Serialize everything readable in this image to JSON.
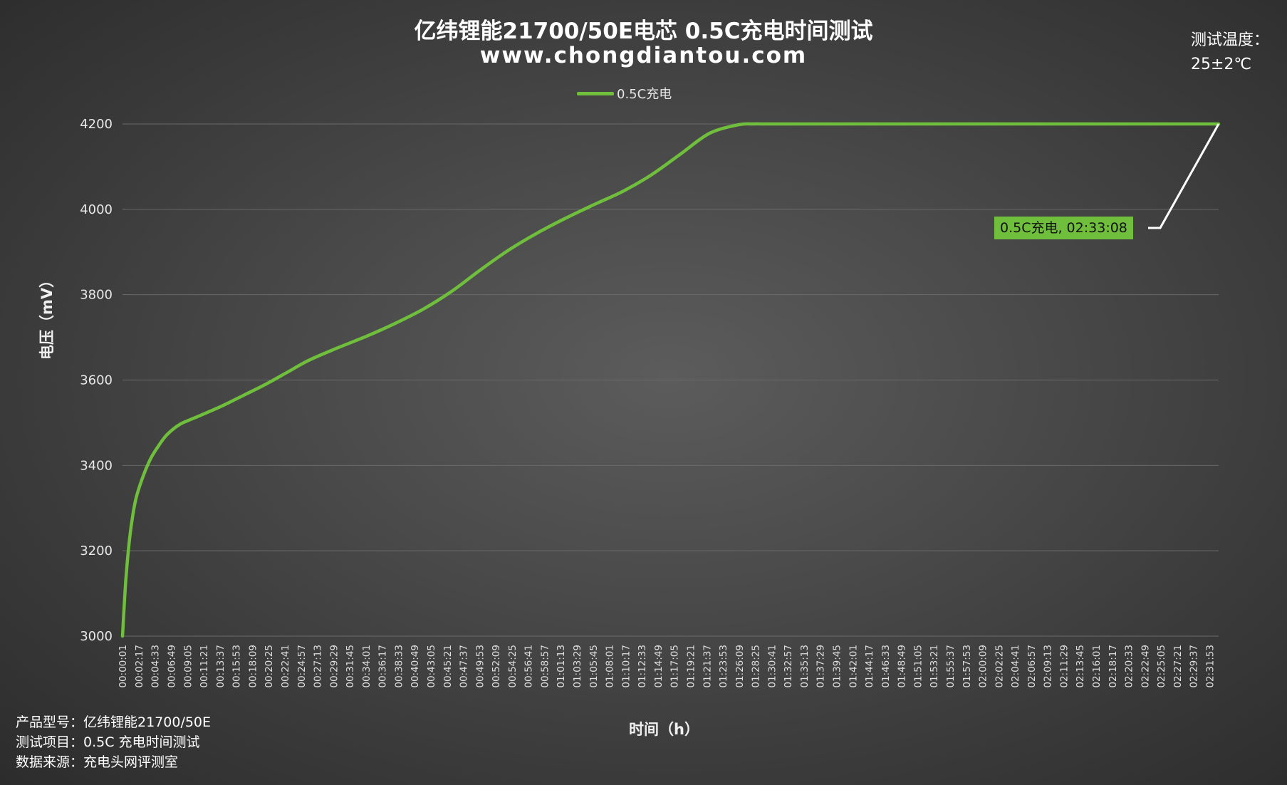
{
  "title_line1": "亿纬锂能21700/50E电芯 0.5C充电时间测试",
  "title_line2": "www.chongdiantou.com",
  "temperature_label": "测试温度：",
  "temperature_value": "25±2℃",
  "info": {
    "model": "产品型号：亿纬锂能21700/50E",
    "project": "测试项目：0.5C 充电时间测试",
    "source": "数据来源：充电头网评测室"
  },
  "colors": {
    "series": "#6fbf3c",
    "gridline": "#6a6a6a",
    "leader": "#ffffff"
  },
  "chart_data": {
    "type": "line",
    "title": "亿纬锂能21700/50E电芯 0.5C充电时间测试",
    "xlabel": "时间（h）",
    "ylabel": "电压（mV）",
    "ylim": [
      3000,
      4200
    ],
    "yticks": [
      3000,
      3200,
      3400,
      3600,
      3800,
      4000,
      4200
    ],
    "grid": "horizontal",
    "legend": "top-center",
    "x_ticks": [
      "00:00:01",
      "00:02:17",
      "00:04:33",
      "00:06:49",
      "00:09:05",
      "00:11:21",
      "00:13:37",
      "00:15:53",
      "00:18:09",
      "00:20:25",
      "00:22:41",
      "00:24:57",
      "00:27:13",
      "00:29:29",
      "00:31:45",
      "00:34:01",
      "00:36:17",
      "00:38:33",
      "00:40:49",
      "00:43:05",
      "00:45:21",
      "00:47:37",
      "00:49:53",
      "00:52:09",
      "00:54:25",
      "00:56:41",
      "00:58:57",
      "01:01:13",
      "01:03:29",
      "01:05:45",
      "01:08:01",
      "01:10:17",
      "01:12:33",
      "01:14:49",
      "01:17:05",
      "01:19:21",
      "01:21:37",
      "01:23:53",
      "01:26:09",
      "01:28:25",
      "01:30:41",
      "01:32:57",
      "01:35:13",
      "01:37:29",
      "01:39:45",
      "01:42:01",
      "01:44:17",
      "01:46:33",
      "01:48:49",
      "01:51:05",
      "01:53:21",
      "01:55:37",
      "01:57:53",
      "02:00:09",
      "02:02:25",
      "02:04:41",
      "02:06:57",
      "02:09:13",
      "02:11:29",
      "02:13:45",
      "02:16:01",
      "02:18:17",
      "02:20:33",
      "02:22:49",
      "02:25:05",
      "02:27:21",
      "02:29:37",
      "02:31:53"
    ],
    "series": [
      {
        "name": "0.5C充电",
        "x_min": [
          0,
          0.2,
          0.5,
          1,
          1.5,
          2,
          3,
          4,
          5,
          6,
          7,
          8,
          9,
          11,
          14,
          17,
          20,
          23,
          26,
          30,
          34,
          38,
          42,
          46,
          50,
          54,
          58,
          62,
          66,
          70,
          74,
          78,
          82,
          86,
          88,
          90,
          92,
          94,
          96,
          100,
          110,
          120,
          130,
          140,
          150,
          153.13
        ],
        "voltage_mv": [
          3000,
          3060,
          3140,
          3230,
          3290,
          3330,
          3380,
          3418,
          3445,
          3468,
          3484,
          3496,
          3504,
          3518,
          3540,
          3565,
          3590,
          3618,
          3646,
          3675,
          3702,
          3732,
          3766,
          3808,
          3858,
          3905,
          3945,
          3980,
          4012,
          4043,
          4082,
          4130,
          4178,
          4198,
          4200,
          4200,
          4200,
          4200,
          4200,
          4200,
          4200,
          4200,
          4200,
          4200,
          4200,
          4200
        ]
      }
    ],
    "annotation": {
      "text": "0.5C充电, 02:33:08",
      "x_min": 153.13,
      "y": 4200
    }
  }
}
